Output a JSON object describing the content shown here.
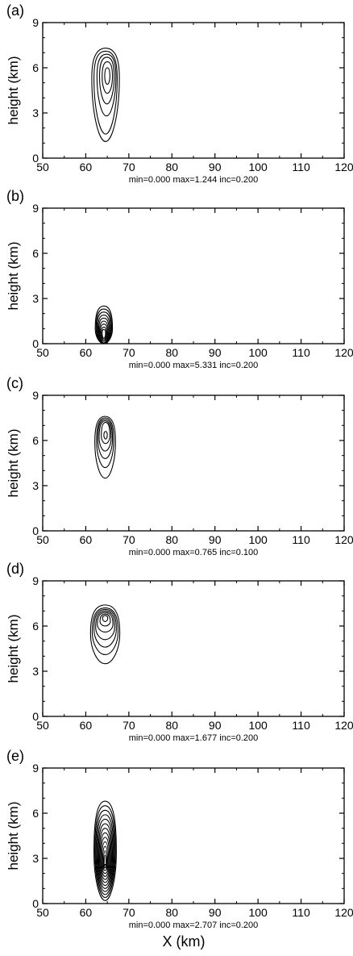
{
  "figure": {
    "xaxis_label": "X (km)",
    "ylabel": "height (km)",
    "x_ticks": [
      50,
      60,
      70,
      80,
      90,
      100,
      110,
      120
    ],
    "y_ticks": [
      0,
      3,
      6,
      9
    ],
    "xlim": [
      50,
      120
    ],
    "ylim": [
      0,
      9
    ]
  },
  "chart_data": [
    {
      "type": "contour",
      "panel_label": "(a)",
      "ylabel": "height (km)",
      "xlim": [
        50,
        120
      ],
      "ylim": [
        0,
        9
      ],
      "annotation": "min=0.000 max=1.244 inc=0.200",
      "min": 0.0,
      "max": 1.244,
      "inc": 0.2,
      "contour_shapes": [
        {
          "cx": 64.6,
          "cy": 5.3,
          "rx_km": 3.2,
          "y_bottom": 1.1,
          "y_top": 7.3
        },
        {
          "cx": 64.6,
          "cy": 5.3,
          "rx_km": 2.7,
          "y_bottom": 1.6,
          "y_top": 7.1
        },
        {
          "cx": 64.8,
          "cy": 5.4,
          "rx_km": 2.2,
          "y_bottom": 2.8,
          "y_top": 6.9
        },
        {
          "cx": 64.9,
          "cy": 5.4,
          "rx_km": 1.7,
          "y_bottom": 3.6,
          "y_top": 6.7
        },
        {
          "cx": 65.0,
          "cy": 5.4,
          "rx_km": 1.2,
          "y_bottom": 4.3,
          "y_top": 6.4
        },
        {
          "cx": 65.0,
          "cy": 5.4,
          "rx_km": 0.6,
          "y_bottom": 4.9,
          "y_top": 6.0
        }
      ]
    },
    {
      "type": "contour",
      "panel_label": "(b)",
      "ylabel": "height (km)",
      "xlim": [
        50,
        120
      ],
      "ylim": [
        0,
        9
      ],
      "annotation": "min=0.000 max=5.331 inc=0.200",
      "min": 0.0,
      "max": 5.331,
      "inc": 0.2,
      "contour_shapes": [
        {
          "cx": 64.2,
          "cy": 1.0,
          "rx_km": 2.0,
          "y_bottom": 0.0,
          "y_top": 2.5
        },
        {
          "cx": 64.2,
          "cy": 1.0,
          "rx_km": 1.8,
          "y_bottom": 0.0,
          "y_top": 2.3
        },
        {
          "cx": 64.2,
          "cy": 1.0,
          "rx_km": 1.6,
          "y_bottom": 0.0,
          "y_top": 2.1
        },
        {
          "cx": 64.2,
          "cy": 0.9,
          "rx_km": 1.4,
          "y_bottom": 0.0,
          "y_top": 1.9
        },
        {
          "cx": 64.2,
          "cy": 0.9,
          "rx_km": 1.2,
          "y_bottom": 0.0,
          "y_top": 1.7
        },
        {
          "cx": 64.2,
          "cy": 0.8,
          "rx_km": 1.0,
          "y_bottom": 0.05,
          "y_top": 1.5
        },
        {
          "cx": 64.2,
          "cy": 0.8,
          "rx_km": 0.8,
          "y_bottom": 0.15,
          "y_top": 1.3
        },
        {
          "cx": 64.2,
          "cy": 0.7,
          "rx_km": 0.6,
          "y_bottom": 0.25,
          "y_top": 1.1
        },
        {
          "cx": 64.2,
          "cy": 0.7,
          "rx_km": 0.4,
          "y_bottom": 0.35,
          "y_top": 0.95
        }
      ]
    },
    {
      "type": "contour",
      "panel_label": "(c)",
      "ylabel": "height (km)",
      "xlim": [
        50,
        120
      ],
      "ylim": [
        0,
        9
      ],
      "annotation": "min=0.000 max=0.765 inc=0.100",
      "min": 0.0,
      "max": 0.765,
      "inc": 0.1,
      "contour_shapes": [
        {
          "cx": 64.5,
          "cy": 5.9,
          "rx_km": 2.4,
          "y_bottom": 3.5,
          "y_top": 7.6
        },
        {
          "cx": 64.5,
          "cy": 6.0,
          "rx_km": 2.0,
          "y_bottom": 4.2,
          "y_top": 7.5
        },
        {
          "cx": 64.5,
          "cy": 6.1,
          "rx_km": 1.7,
          "y_bottom": 4.8,
          "y_top": 7.4
        },
        {
          "cx": 64.5,
          "cy": 6.2,
          "rx_km": 1.4,
          "y_bottom": 5.3,
          "y_top": 7.3
        },
        {
          "cx": 64.6,
          "cy": 6.3,
          "rx_km": 1.0,
          "y_bottom": 5.8,
          "y_top": 7.2
        },
        {
          "cx": 64.6,
          "cy": 6.35,
          "rx_km": 0.4,
          "y_bottom": 6.1,
          "y_top": 6.6
        }
      ]
    },
    {
      "type": "contour",
      "panel_label": "(d)",
      "ylabel": "height (km)",
      "xlim": [
        50,
        120
      ],
      "ylim": [
        0,
        9
      ],
      "annotation": "min=0.000 max=1.677 inc=0.200",
      "min": 0.0,
      "max": 1.677,
      "inc": 0.2,
      "contour_shapes": [
        {
          "cx": 64.5,
          "cy": 5.5,
          "rx_km": 3.4,
          "y_bottom": 3.5,
          "y_top": 7.4
        },
        {
          "cx": 64.5,
          "cy": 5.6,
          "rx_km": 3.0,
          "y_bottom": 4.1,
          "y_top": 7.2
        },
        {
          "cx": 64.5,
          "cy": 5.8,
          "rx_km": 2.6,
          "y_bottom": 4.6,
          "y_top": 7.1
        },
        {
          "cx": 64.5,
          "cy": 5.9,
          "rx_km": 2.2,
          "y_bottom": 5.1,
          "y_top": 7.0
        },
        {
          "cx": 64.5,
          "cy": 6.1,
          "rx_km": 1.8,
          "y_bottom": 5.6,
          "y_top": 6.9
        },
        {
          "cx": 64.5,
          "cy": 6.3,
          "rx_km": 1.2,
          "y_bottom": 6.0,
          "y_top": 6.8
        },
        {
          "cx": 64.5,
          "cy": 6.5,
          "rx_km": 0.6,
          "y_bottom": 6.3,
          "y_top": 6.7
        }
      ]
    },
    {
      "type": "contour",
      "panel_label": "(e)",
      "ylabel": "height (km)",
      "xlabel": "X (km)",
      "xlim": [
        50,
        120
      ],
      "ylim": [
        0,
        9
      ],
      "annotation": "min=0.000 max=2.707 inc=0.200",
      "min": 0.0,
      "max": 2.707,
      "inc": 0.2,
      "contour_shapes": [
        {
          "cx": 64.5,
          "cy": 3.4,
          "rx_km": 2.6,
          "y_bottom": 0.2,
          "y_top": 6.8
        },
        {
          "cx": 64.5,
          "cy": 3.4,
          "rx_km": 2.4,
          "y_bottom": 0.4,
          "y_top": 6.5
        },
        {
          "cx": 64.5,
          "cy": 3.3,
          "rx_km": 2.2,
          "y_bottom": 0.6,
          "y_top": 6.2
        },
        {
          "cx": 64.5,
          "cy": 3.2,
          "rx_km": 2.0,
          "y_bottom": 0.8,
          "y_top": 5.9
        },
        {
          "cx": 64.5,
          "cy": 3.1,
          "rx_km": 1.8,
          "y_bottom": 1.0,
          "y_top": 5.6
        },
        {
          "cx": 64.5,
          "cy": 3.0,
          "rx_km": 1.6,
          "y_bottom": 1.2,
          "y_top": 5.3
        },
        {
          "cx": 64.5,
          "cy": 2.9,
          "rx_km": 1.4,
          "y_bottom": 1.4,
          "y_top": 5.0
        },
        {
          "cx": 64.5,
          "cy": 2.8,
          "rx_km": 1.2,
          "y_bottom": 1.6,
          "y_top": 4.7
        },
        {
          "cx": 64.5,
          "cy": 2.7,
          "rx_km": 1.0,
          "y_bottom": 1.8,
          "y_top": 4.4
        },
        {
          "cx": 64.5,
          "cy": 2.6,
          "rx_km": 0.8,
          "y_bottom": 2.0,
          "y_top": 4.1
        },
        {
          "cx": 64.5,
          "cy": 2.5,
          "rx_km": 0.6,
          "y_bottom": 2.2,
          "y_top": 3.8
        },
        {
          "cx": 64.5,
          "cy": 2.4,
          "rx_km": 0.4,
          "y_bottom": 2.4,
          "y_top": 3.5
        },
        {
          "cx": 64.5,
          "cy": 2.3,
          "rx_km": 0.25,
          "y_bottom": 2.6,
          "y_top": 3.2
        }
      ]
    }
  ]
}
